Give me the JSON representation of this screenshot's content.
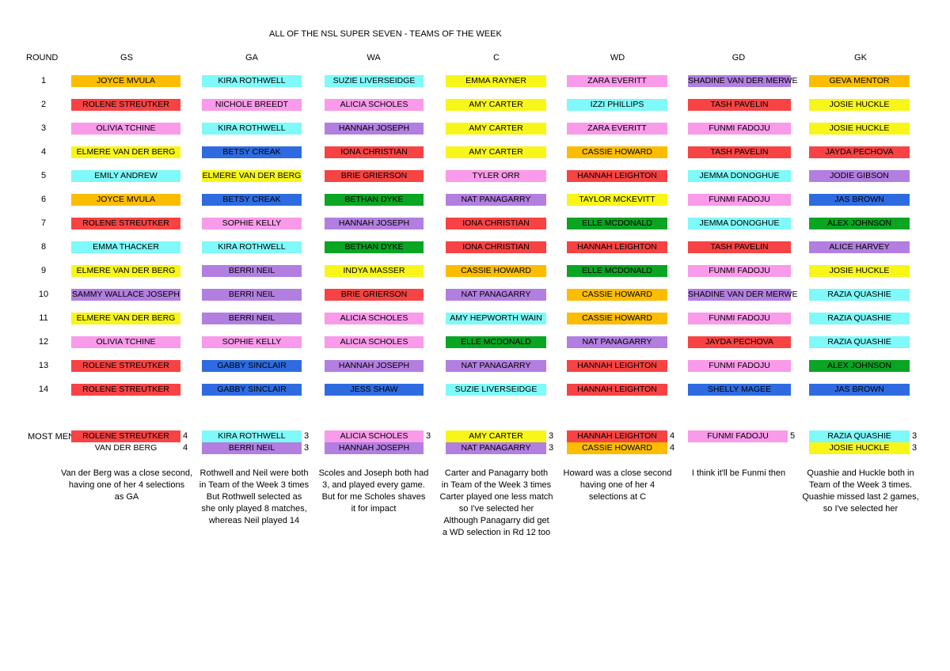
{
  "title": "ALL OF THE NSL SUPER SEVEN - TEAMS OF THE WEEK",
  "round_header": "ROUND",
  "positions": [
    "GS",
    "GA",
    "WA",
    "C",
    "WD",
    "GD",
    "GK"
  ],
  "colors": {
    "orange": "#fcbd00",
    "cyan": "#7ff9f9",
    "yellow": "#f8f618",
    "pink": "#f99aea",
    "red": "#f74343",
    "blue": "#2e6be0",
    "purple": "#b27ee0",
    "green": "#09a523"
  },
  "rounds": [
    {
      "round": "1",
      "cells": [
        {
          "name": "JOYCE MVULA",
          "color": "orange"
        },
        {
          "name": "KIRA ROTHWELL",
          "color": "cyan"
        },
        {
          "name": "SUZIE LIVERSEIDGE",
          "color": "cyan"
        },
        {
          "name": "EMMA  RAYNER",
          "color": "yellow"
        },
        {
          "name": "ZARA EVERITT",
          "color": "pink"
        },
        {
          "name": "SHADINE VAN DER MERWE",
          "color": "purple"
        },
        {
          "name": "GEVA MENTOR",
          "color": "orange"
        }
      ]
    },
    {
      "round": "2",
      "cells": [
        {
          "name": "ROLENE STREUTKER",
          "color": "red"
        },
        {
          "name": "NICHOLE BREEDT",
          "color": "pink"
        },
        {
          "name": "ALICIA SCHOLES",
          "color": "pink"
        },
        {
          "name": "AMY CARTER",
          "color": "yellow"
        },
        {
          "name": "IZZI PHILLIPS",
          "color": "cyan"
        },
        {
          "name": "TASH PAVELIN",
          "color": "red"
        },
        {
          "name": "JOSIE HUCKLE",
          "color": "yellow"
        }
      ]
    },
    {
      "round": "3",
      "cells": [
        {
          "name": "OLIVIA TCHINE",
          "color": "pink"
        },
        {
          "name": "KIRA ROTHWELL",
          "color": "cyan"
        },
        {
          "name": "HANNAH JOSEPH",
          "color": "purple"
        },
        {
          "name": "AMY CARTER",
          "color": "yellow"
        },
        {
          "name": "ZARA EVERITT",
          "color": "pink"
        },
        {
          "name": "FUNMI FADOJU",
          "color": "pink"
        },
        {
          "name": "JOSIE HUCKLE",
          "color": "yellow"
        }
      ]
    },
    {
      "round": "4",
      "cells": [
        {
          "name": "ELMERE VAN DER BERG",
          "color": "yellow"
        },
        {
          "name": "BETSY CREAK",
          "color": "blue"
        },
        {
          "name": "IONA CHRISTIAN",
          "color": "red"
        },
        {
          "name": "AMY CARTER",
          "color": "yellow"
        },
        {
          "name": "CASSIE HOWARD",
          "color": "orange"
        },
        {
          "name": "TASH PAVELIN",
          "color": "red"
        },
        {
          "name": "JAYDA PECHOVA",
          "color": "red"
        }
      ]
    },
    {
      "round": "5",
      "cells": [
        {
          "name": "EMILY ANDREW",
          "color": "cyan"
        },
        {
          "name": "ELMERE VAN DER BERG",
          "color": "yellow"
        },
        {
          "name": "BRIE GRIERSON",
          "color": "red"
        },
        {
          "name": "TYLER ORR",
          "color": "pink"
        },
        {
          "name": "HANNAH LEIGHTON",
          "color": "red"
        },
        {
          "name": "JEMMA DONOGHUE",
          "color": "cyan"
        },
        {
          "name": "JODIE GIBSON",
          "color": "purple"
        }
      ]
    },
    {
      "round": "6",
      "cells": [
        {
          "name": "JOYCE MVULA",
          "color": "orange"
        },
        {
          "name": "BETSY CREAK",
          "color": "blue"
        },
        {
          "name": "BETHAN DYKE",
          "color": "green"
        },
        {
          "name": "NAT PANAGARRY",
          "color": "purple"
        },
        {
          "name": "TAYLOR MCKEVITT",
          "color": "yellow"
        },
        {
          "name": "FUNMI FADOJU",
          "color": "pink"
        },
        {
          "name": "JAS BROWN",
          "color": "blue"
        }
      ]
    },
    {
      "round": "7",
      "cells": [
        {
          "name": "ROLENE STREUTKER",
          "color": "red"
        },
        {
          "name": "SOPHIE KELLY",
          "color": "pink"
        },
        {
          "name": "HANNAH JOSEPH",
          "color": "purple"
        },
        {
          "name": "IONA CHRISTIAN",
          "color": "red"
        },
        {
          "name": "ELLE MCDONALD",
          "color": "green"
        },
        {
          "name": "JEMMA DONOGHUE",
          "color": "cyan"
        },
        {
          "name": "ALEX JOHNSON",
          "color": "green"
        }
      ]
    },
    {
      "round": "8",
      "cells": [
        {
          "name": "EMMA THACKER",
          "color": "cyan"
        },
        {
          "name": "KIRA ROTHWELL",
          "color": "cyan"
        },
        {
          "name": "BETHAN DYKE",
          "color": "green"
        },
        {
          "name": "IONA CHRISTIAN",
          "color": "red"
        },
        {
          "name": "HANNAH LEIGHTON",
          "color": "red"
        },
        {
          "name": "TASH PAVELIN",
          "color": "red"
        },
        {
          "name": "ALICE HARVEY",
          "color": "purple"
        }
      ]
    },
    {
      "round": "9",
      "cells": [
        {
          "name": "ELMERE VAN DER BERG",
          "color": "yellow"
        },
        {
          "name": "BERRI NEIL",
          "color": "purple"
        },
        {
          "name": "INDYA MASSER",
          "color": "yellow"
        },
        {
          "name": "CASSIE HOWARD",
          "color": "orange"
        },
        {
          "name": "ELLE MCDONALD",
          "color": "green"
        },
        {
          "name": "FUNMI FADOJU",
          "color": "pink"
        },
        {
          "name": "JOSIE HUCKLE",
          "color": "yellow"
        }
      ]
    },
    {
      "round": "10",
      "cells": [
        {
          "name": "SAMMY WALLACE JOSEPH",
          "color": "purple"
        },
        {
          "name": "BERRI NEIL",
          "color": "purple"
        },
        {
          "name": "BRIE GRIERSON",
          "color": "red"
        },
        {
          "name": "NAT PANAGARRY",
          "color": "purple"
        },
        {
          "name": "CASSIE HOWARD",
          "color": "orange"
        },
        {
          "name": "SHADINE VAN DER MERWE",
          "color": "purple"
        },
        {
          "name": "RAZIA QUASHIE",
          "color": "cyan"
        }
      ]
    },
    {
      "round": "11",
      "cells": [
        {
          "name": "ELMERE VAN DER BERG",
          "color": "yellow"
        },
        {
          "name": "BERRI NEIL",
          "color": "purple"
        },
        {
          "name": "ALICIA SCHOLES",
          "color": "pink"
        },
        {
          "name": "AMY HEPWORTH WAIN",
          "color": "cyan"
        },
        {
          "name": "CASSIE HOWARD",
          "color": "orange"
        },
        {
          "name": "FUNMI FADOJU",
          "color": "pink"
        },
        {
          "name": "RAZIA QUASHIE",
          "color": "cyan"
        }
      ]
    },
    {
      "round": "12",
      "cells": [
        {
          "name": "OLIVIA TCHINE",
          "color": "pink"
        },
        {
          "name": "SOPHIE KELLY",
          "color": "pink"
        },
        {
          "name": "ALICIA SCHOLES",
          "color": "pink"
        },
        {
          "name": "ELLE MCDONALD",
          "color": "green"
        },
        {
          "name": "NAT PANAGARRY",
          "color": "purple"
        },
        {
          "name": "JAYDA PECHOVA",
          "color": "red"
        },
        {
          "name": "RAZIA QUASHIE",
          "color": "cyan"
        }
      ]
    },
    {
      "round": "13",
      "cells": [
        {
          "name": "ROLENE STREUTKER",
          "color": "red"
        },
        {
          "name": "GABBY SINCLAIR",
          "color": "blue"
        },
        {
          "name": "HANNAH JOSEPH",
          "color": "purple"
        },
        {
          "name": "NAT PANAGARRY",
          "color": "purple"
        },
        {
          "name": "HANNAH LEIGHTON",
          "color": "red"
        },
        {
          "name": "FUNMI FADOJU",
          "color": "pink"
        },
        {
          "name": "ALEX JOHNSON",
          "color": "green"
        }
      ]
    },
    {
      "round": "14",
      "cells": [
        {
          "name": "ROLENE STREUTKER",
          "color": "red"
        },
        {
          "name": "GABBY SINCLAIR",
          "color": "blue"
        },
        {
          "name": "JESS SHAW",
          "color": "blue"
        },
        {
          "name": "SUZIE LIVERSEIDGE",
          "color": "cyan"
        },
        {
          "name": "HANNAH LEIGHTON",
          "color": "red"
        },
        {
          "name": "SHELLY MAGEE",
          "color": "blue"
        },
        {
          "name": "JAS BROWN",
          "color": "blue"
        }
      ]
    }
  ],
  "most_mentions": {
    "label": "MOST MEN",
    "columns": [
      {
        "rows": [
          {
            "name": "ROLENE STREUTKER",
            "color": "red",
            "count": "4"
          },
          {
            "name": "VAN DER BERG",
            "color": "none",
            "count": "4"
          }
        ]
      },
      {
        "rows": [
          {
            "name": "KIRA ROTHWELL",
            "color": "cyan",
            "count": "3"
          },
          {
            "name": "BERRI NEIL",
            "color": "purple",
            "count": "3"
          }
        ]
      },
      {
        "rows": [
          {
            "name": "ALICIA SCHOLES",
            "color": "pink",
            "count": "3"
          },
          {
            "name": "HANNAH JOSEPH",
            "color": "purple",
            "count": ""
          }
        ]
      },
      {
        "rows": [
          {
            "name": "AMY CARTER",
            "color": "yellow",
            "count": "3"
          },
          {
            "name": "NAT PANAGARRY",
            "color": "purple",
            "count": "3"
          }
        ]
      },
      {
        "rows": [
          {
            "name": "HANNAH LEIGHTON",
            "color": "red",
            "count": "4"
          },
          {
            "name": "CASSIE HOWARD",
            "color": "orange",
            "count": "4"
          }
        ]
      },
      {
        "rows": [
          {
            "name": "FUNMI FADOJU",
            "color": "pink",
            "count": "5"
          }
        ]
      },
      {
        "rows": [
          {
            "name": "RAZIA QUASHIE",
            "color": "cyan",
            "count": "3"
          },
          {
            "name": "JOSIE HUCKLE",
            "color": "yellow",
            "count": "3"
          }
        ]
      }
    ]
  },
  "notes": [
    [
      "Van der Berg was a close second,",
      "having one of her 4 selections",
      "as GA"
    ],
    [
      "Rothwell and Neil were both",
      "in Team of the Week 3 times",
      "But Rothwell selected as",
      "she only played 8 matches,",
      "whereas Neil played 14"
    ],
    [
      "Scoles and Joseph both had",
      "3, and played every game.",
      "But for me Scholes shaves",
      "it for impact"
    ],
    [
      "Carter and Panagarry both",
      "in Team of the Week 3 times",
      "Carter played one less match",
      "so I've selected her",
      "Although Panagarry did get",
      "a WD selection in Rd 12 too"
    ],
    [
      "Howard was a close second",
      "having one of her 4",
      "selections at C"
    ],
    [
      "I think it'll be Funmi then"
    ],
    [
      "Quashie and Huckle both in",
      "Team of the Week 3 times.",
      "Quashie missed last 2 games,",
      "so I've selected her"
    ]
  ]
}
